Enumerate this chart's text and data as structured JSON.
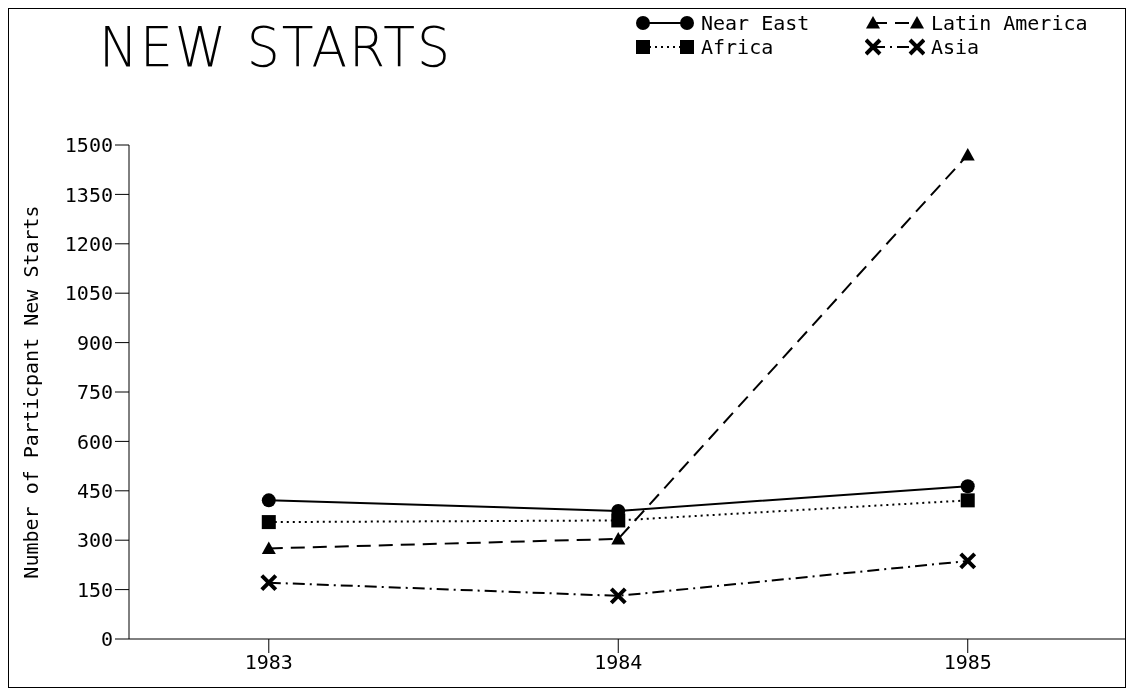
{
  "chart_data": {
    "type": "line",
    "title": "NEW STARTS",
    "ylabel": "Number of Particpant New Starts",
    "x": [
      1983,
      1984,
      1985
    ],
    "xlim": [
      1982.6,
      1985.45
    ],
    "xticks": [
      1983,
      1984,
      1985
    ],
    "ylim": [
      0,
      1500
    ],
    "yticks": [
      0,
      150,
      300,
      450,
      600,
      750,
      900,
      1050,
      1200,
      1350,
      1500
    ],
    "series": [
      {
        "name": "Near East",
        "color": "#000000",
        "values": [
          421,
          389,
          464
        ],
        "marker": "circle",
        "line_style": "solid"
      },
      {
        "name": "Latin America",
        "color": "#000000",
        "values": [
          275,
          304,
          1470
        ],
        "marker": "triangle",
        "line_style": "dashed"
      },
      {
        "name": "Africa",
        "color": "#000000",
        "values": [
          355,
          360,
          421
        ],
        "marker": "square",
        "line_style": "dotted"
      },
      {
        "name": "Asia",
        "color": "#000000",
        "values": [
          171,
          131,
          237
        ],
        "marker": "cross",
        "line_style": "dashdot"
      }
    ],
    "grid": false,
    "legend": "top right"
  }
}
